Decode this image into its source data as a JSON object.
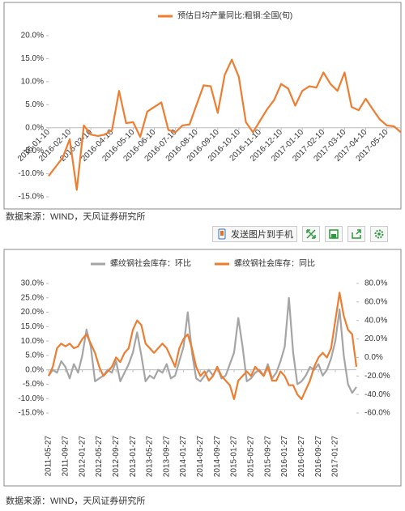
{
  "chart_data": [
    {
      "type": "line",
      "categories": [
        "2016-01-10",
        null,
        null,
        "2016-02-10",
        null,
        null,
        "2016-03-10",
        null,
        null,
        "2016-04-10",
        null,
        null,
        "2016-05-10",
        null,
        null,
        "2016-06-10",
        null,
        null,
        "2016-07-10",
        null,
        null,
        "2016-08-10",
        null,
        null,
        "2016-09-10",
        null,
        null,
        "2016-10-10",
        null,
        null,
        "2016-11-10",
        null,
        null,
        "2016-12-10",
        null,
        null,
        "2017-01-10",
        null,
        null,
        "2017-02-10",
        null,
        null,
        "2017-03-10",
        null,
        null,
        "2017-04-10",
        null,
        null,
        "2017-05-10",
        null,
        null
      ],
      "series": [
        {
          "name": "预估日均产量同比:粗钢:全国(旬)",
          "color": "#ed7d31",
          "values": [
            -10.5,
            -8.5,
            -6.5,
            -2.5,
            -13.5,
            0.5,
            -1.5,
            -1.8,
            -1.5,
            -0.5,
            8,
            1,
            1.2,
            -2,
            3.5,
            4.5,
            5.5,
            -0.5,
            -1,
            0.5,
            0.7,
            5,
            9.2,
            9,
            3.2,
            11.5,
            14.8,
            11,
            1.2,
            -1,
            1.5,
            4,
            6,
            9.5,
            8.5,
            4.8,
            8,
            9,
            8.7,
            12,
            9.5,
            8,
            12,
            4.5,
            3.8,
            6.3,
            4,
            1.8,
            0.5,
            0.3,
            -1
          ]
        }
      ],
      "ylim": [
        -15,
        20
      ],
      "yticks": [
        {
          "value": -15,
          "label": "-15.0%"
        },
        {
          "value": -10,
          "label": "-10.0%"
        },
        {
          "value": -5,
          "label": "-5.0%"
        },
        {
          "value": 0,
          "label": "0.0%"
        },
        {
          "value": 5,
          "label": "5.0%"
        },
        {
          "value": 10,
          "label": "10.0%"
        },
        {
          "value": 15,
          "label": "15.0%"
        },
        {
          "value": 20,
          "label": "20.0%"
        }
      ]
    },
    {
      "type": "line",
      "categories": [
        "2011-05-27",
        null,
        null,
        null,
        "2011-09-27",
        null,
        null,
        null,
        "2012-01-27",
        null,
        null,
        null,
        "2012-05-27",
        null,
        null,
        null,
        "2012-09-27",
        null,
        null,
        null,
        "2013-01-27",
        null,
        null,
        null,
        "2013-05-27",
        null,
        null,
        null,
        "2013-09-27",
        null,
        null,
        null,
        "2014-01-27",
        null,
        null,
        null,
        "2014-05-27",
        null,
        null,
        null,
        "2014-09-27",
        null,
        null,
        null,
        "2015-01-27",
        null,
        null,
        null,
        "2015-05-27",
        null,
        null,
        null,
        "2015-09-27",
        null,
        null,
        null,
        "2016-01-27",
        null,
        null,
        null,
        "2016-05-27",
        null,
        null,
        null,
        "2016-09-27",
        null,
        null,
        null,
        "2017-01-27",
        null,
        null,
        null,
        null,
        null
      ],
      "series": [
        {
          "name": "螺纹钢社会库存：环比",
          "color": "#a5a5a5",
          "values": [
            -2,
            0,
            -1,
            3,
            1,
            -3,
            2,
            -1,
            5,
            14,
            8,
            -4,
            -3,
            -2,
            0,
            -1,
            3,
            -4,
            -1,
            2,
            6,
            13,
            5,
            -4,
            -2,
            -3,
            0,
            -1,
            2,
            -3,
            -2,
            3,
            8,
            20,
            6,
            -3,
            -4,
            -2,
            0,
            -2,
            1,
            -3,
            -2,
            2,
            6,
            18,
            8,
            -4,
            -3,
            -1,
            0,
            -2,
            2,
            -3,
            -1,
            3,
            8,
            25,
            6,
            -5,
            -4,
            -2,
            1,
            0,
            2,
            -2,
            0,
            4,
            10,
            21,
            5,
            -5,
            -8,
            -6
          ]
        },
        {
          "name": "螺纹钢社会库存：同比",
          "color": "#ed7d31",
          "axis": "y2",
          "values": [
            -20,
            -10,
            10,
            15,
            12,
            15,
            10,
            12,
            20,
            25,
            15,
            5,
            -10,
            -20,
            -15,
            -10,
            0,
            -5,
            5,
            10,
            30,
            40,
            35,
            15,
            10,
            5,
            10,
            15,
            10,
            0,
            -10,
            10,
            20,
            25,
            10,
            -10,
            -20,
            -15,
            -25,
            -20,
            -10,
            -20,
            -25,
            -30,
            -45,
            -25,
            -20,
            -15,
            -20,
            -10,
            -15,
            -20,
            -10,
            -25,
            -25,
            -15,
            -20,
            -30,
            -30,
            -40,
            -45,
            -35,
            -25,
            -10,
            0,
            5,
            0,
            10,
            40,
            70,
            45,
            30,
            25,
            -10
          ]
        }
      ],
      "ylim": [
        -15,
        30
      ],
      "yticks": [
        {
          "value": -15,
          "label": "-15.0%"
        },
        {
          "value": -10,
          "label": "-10.0%"
        },
        {
          "value": -5,
          "label": "-5.0%"
        },
        {
          "value": 0,
          "label": "0.0%"
        },
        {
          "value": 5,
          "label": "5.0%"
        },
        {
          "value": 10,
          "label": "10.0%"
        },
        {
          "value": 15,
          "label": "15.0%"
        },
        {
          "value": 20,
          "label": "20.0%"
        },
        {
          "value": 25,
          "label": "25.0%"
        },
        {
          "value": 30,
          "label": "30.0%"
        }
      ],
      "y2lim": [
        -60,
        80
      ],
      "y2ticks": [
        {
          "value": -60,
          "label": "-60.0%"
        },
        {
          "value": -40,
          "label": "-40.0%"
        },
        {
          "value": -20,
          "label": "-20.0%"
        },
        {
          "value": 0,
          "label": "0.0%"
        },
        {
          "value": 20,
          "label": "20.0%"
        },
        {
          "value": 40,
          "label": "40.0%"
        },
        {
          "value": 60,
          "label": "60.0%"
        },
        {
          "value": 80,
          "label": "80.0%"
        }
      ]
    }
  ],
  "sources": [
    "数据来源：WIND，天风证券研究所",
    "数据来源：WIND，天风证券研究所"
  ],
  "toolbar": {
    "button": "发送图片到手机"
  }
}
